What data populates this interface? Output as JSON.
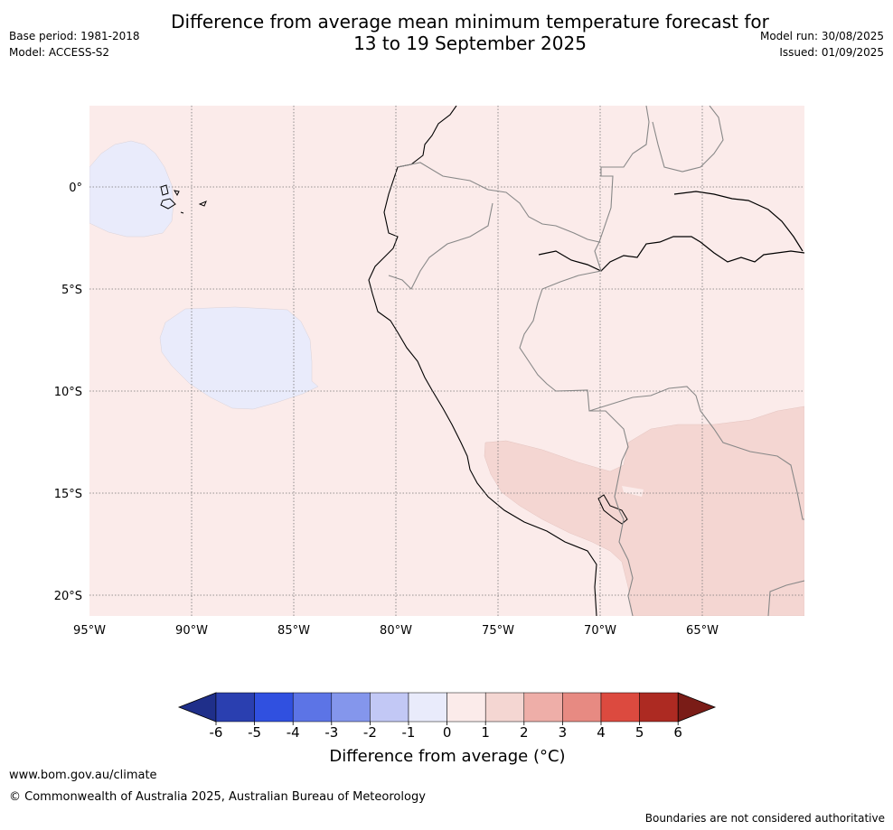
{
  "title_line1": "Difference from average mean minimum temperature forecast for",
  "title_line2": "13 to 19 September 2025",
  "base_period": "Base period: 1981-2018",
  "model": "Model: ACCESS-S2",
  "model_run": "Model run: 30/08/2025",
  "issued": "Issued: 01/09/2025",
  "lon_labels": [
    "95°W",
    "90°W",
    "85°W",
    "80°W",
    "75°W",
    "70°W",
    "65°W"
  ],
  "lat_labels": [
    "0°",
    "5°S",
    "10°S",
    "15°S",
    "20°S"
  ],
  "colorbar": {
    "ticks": [
      "-6",
      "-5",
      "-4",
      "-3",
      "-2",
      "-1",
      "0",
      "1",
      "2",
      "3",
      "4",
      "5",
      "6"
    ],
    "colors": [
      "#1f2f8a",
      "#2a3fb0",
      "#3050e0",
      "#5c74e6",
      "#8496ec",
      "#c2c8f5",
      "#e9ebfb",
      "#fbebea",
      "#f4d6d2",
      "#eeaea8",
      "#e78a82",
      "#dc4a3f",
      "#ad2a22",
      "#7a1c17"
    ],
    "label": "Difference from average (°C)"
  },
  "map_colors": {
    "ocean_land": "#fbebea",
    "warm_zone": "#f4d6d2",
    "cool_zone": "#e9ebfb"
  },
  "footer_url": "www.bom.gov.au/climate",
  "footer_copyright": "© Commonwealth of Australia 2025, Australian Bureau of Meteorology",
  "footer_note": "Boundaries are not considered authoritative"
}
